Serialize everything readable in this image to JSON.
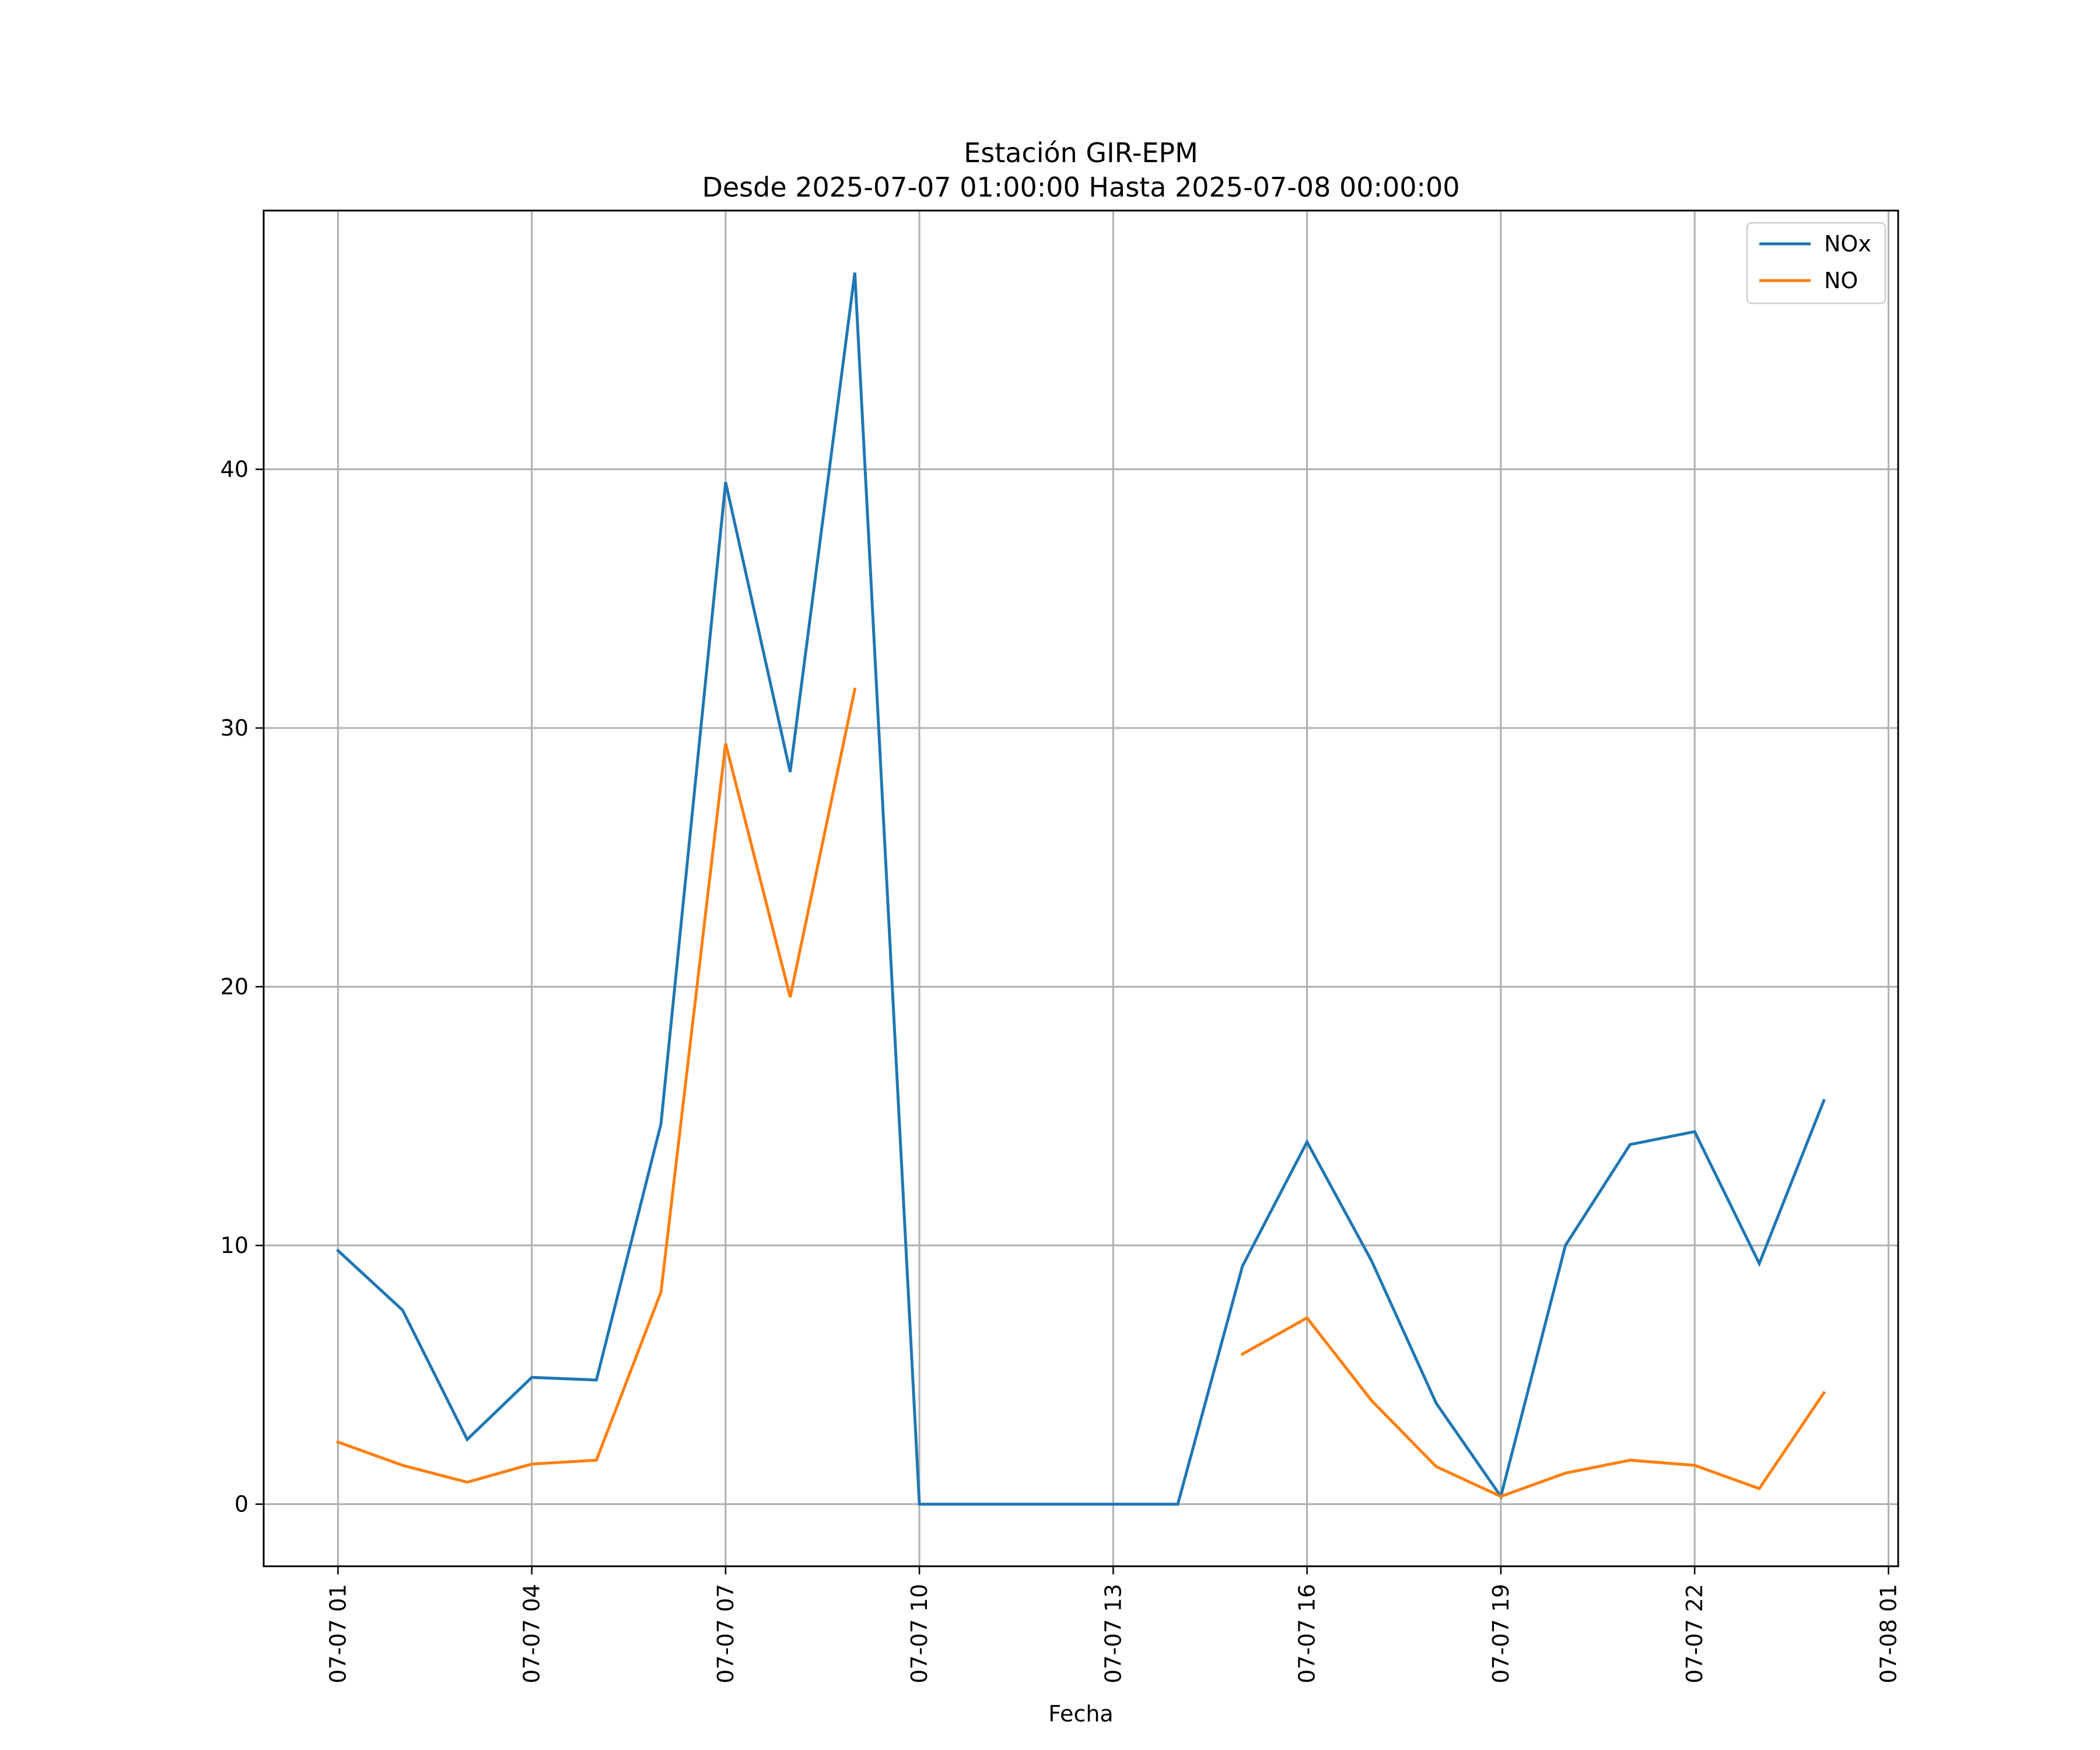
{
  "chart_data": {
    "type": "line",
    "title": "Estación GIR-EPM",
    "subtitle": "Desde 2025-07-07 01:00:00 Hasta 2025-07-08 00:00:00",
    "xlabel": "Fecha",
    "ylabel": "",
    "x": [
      "2025-07-07 01:00",
      "2025-07-07 02:00",
      "2025-07-07 03:00",
      "2025-07-07 04:00",
      "2025-07-07 05:00",
      "2025-07-07 06:00",
      "2025-07-07 07:00",
      "2025-07-07 08:00",
      "2025-07-07 09:00",
      "2025-07-07 10:00",
      "2025-07-07 11:00",
      "2025-07-07 12:00",
      "2025-07-07 13:00",
      "2025-07-07 14:00",
      "2025-07-07 15:00",
      "2025-07-07 16:00",
      "2025-07-07 17:00",
      "2025-07-07 18:00",
      "2025-07-07 19:00",
      "2025-07-07 20:00",
      "2025-07-07 21:00",
      "2025-07-07 22:00",
      "2025-07-07 23:00",
      "2025-07-08 00:00"
    ],
    "series": [
      {
        "name": "NOx",
        "color": "#1f77b4",
        "values": [
          9.8,
          7.5,
          2.5,
          4.9,
          4.8,
          14.7,
          39.5,
          28.3,
          47.6,
          0,
          0,
          0,
          0,
          0,
          9.2,
          14.0,
          9.4,
          3.9,
          0.3,
          10.0,
          13.9,
          14.4,
          9.3,
          15.6
        ]
      },
      {
        "name": "NO",
        "color": "#ff7f0e",
        "values": [
          2.4,
          1.5,
          0.85,
          1.55,
          1.7,
          8.2,
          29.4,
          19.6,
          31.5,
          null,
          null,
          null,
          null,
          null,
          5.8,
          7.2,
          4.0,
          1.45,
          0.3,
          1.2,
          1.7,
          1.5,
          0.6,
          4.3
        ]
      }
    ],
    "x_ticks": [
      "07-07 01",
      "07-07 04",
      "07-07 07",
      "07-07 10",
      "07-07 13",
      "07-07 16",
      "07-07 19",
      "07-07 22",
      "07-08 01"
    ],
    "x_range": [
      "2025-07-06 23:51",
      "2025-07-08 01:09"
    ],
    "y_ticks": [
      0,
      10,
      20,
      30,
      40
    ],
    "ylim": [
      -2.4,
      50.0
    ],
    "grid": true,
    "legend_position": "top-right"
  }
}
